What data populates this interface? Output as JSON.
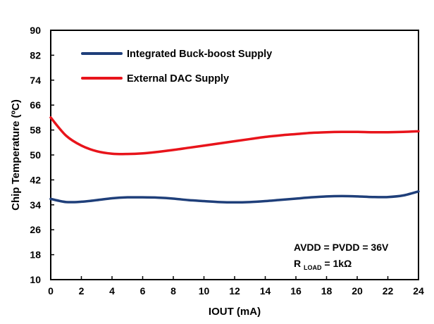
{
  "chart_data": {
    "type": "line",
    "title": "",
    "xlabel": "IOUT (mA)",
    "ylabel": "Chip Temperature (ºC)",
    "xlim": [
      0,
      24
    ],
    "ylim": [
      10,
      90
    ],
    "x_ticks": [
      0,
      2,
      4,
      6,
      8,
      10,
      12,
      14,
      16,
      18,
      20,
      22,
      24
    ],
    "y_ticks": [
      10,
      18,
      26,
      34,
      42,
      50,
      58,
      66,
      74,
      82,
      90
    ],
    "grid": false,
    "legend_position": "top-left",
    "series": [
      {
        "name": "Integrated Buck-boost Supply",
        "color": "#1f3f7a",
        "x": [
          0,
          1,
          2,
          3,
          4,
          5,
          6,
          7,
          8,
          9,
          10,
          11,
          12,
          13,
          14,
          15,
          16,
          17,
          18,
          19,
          20,
          21,
          22,
          23,
          24
        ],
        "y": [
          35.9,
          34.9,
          35.0,
          35.5,
          36.1,
          36.4,
          36.4,
          36.3,
          36.0,
          35.5,
          35.2,
          34.9,
          34.8,
          34.9,
          35.2,
          35.6,
          36.0,
          36.4,
          36.7,
          36.8,
          36.7,
          36.5,
          36.5,
          37.0,
          38.3
        ]
      },
      {
        "name": "External DAC Supply",
        "color": "#e8141b",
        "x": [
          0,
          1,
          2,
          3,
          4,
          5,
          6,
          7,
          8,
          9,
          10,
          11,
          12,
          13,
          14,
          15,
          16,
          17,
          18,
          19,
          20,
          21,
          22,
          23,
          24
        ],
        "y": [
          62.0,
          56.2,
          53.0,
          51.2,
          50.4,
          50.3,
          50.5,
          51.0,
          51.6,
          52.3,
          53.0,
          53.7,
          54.4,
          55.1,
          55.8,
          56.3,
          56.7,
          57.1,
          57.3,
          57.4,
          57.4,
          57.3,
          57.3,
          57.4,
          57.6
        ]
      }
    ],
    "annotation": {
      "line1": "AVDD = PVDD = 36V",
      "line2_prefix": "R",
      "line2_subscript": "LOAD",
      "line2_suffix": " = 1kΩ"
    }
  }
}
